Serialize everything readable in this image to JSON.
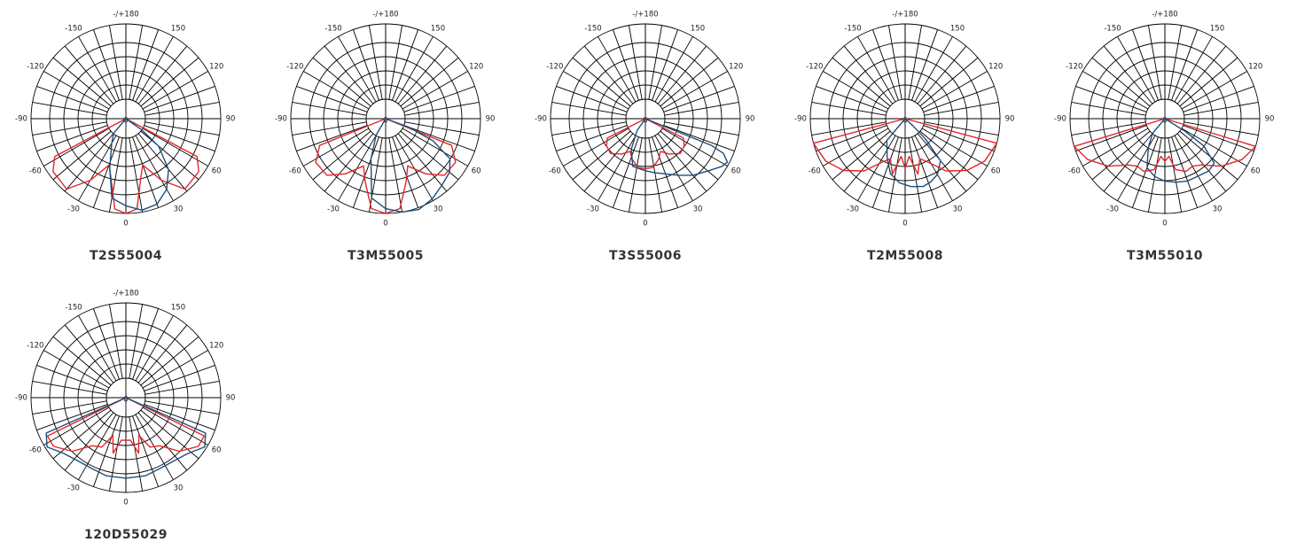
{
  "colors": {
    "grid": "#000000",
    "series_c0": "#e3262b",
    "series_c90": "#1b4f7d",
    "caption": "#333333"
  },
  "chart_data": [
    {
      "type": "polar",
      "title": "T2S55004",
      "grid": true,
      "rlim": [
        0,
        1
      ],
      "angle_ticks": [
        "0",
        "30",
        "60",
        "90",
        "120",
        "150",
        "-/+180",
        "-150",
        "-120",
        "-90",
        "-60",
        "-30",
        "0"
      ],
      "series": [
        {
          "color": "#e3262b",
          "points": [
            [
              -62,
              0.85
            ],
            [
              -54,
              0.95
            ],
            [
              -40,
              0.97
            ],
            [
              -30,
              0.75
            ],
            [
              -20,
              0.52
            ],
            [
              -15,
              0.62
            ],
            [
              -7,
              0.96
            ],
            [
              0,
              1.0
            ],
            [
              7,
              0.96
            ],
            [
              15,
              0.62
            ],
            [
              20,
              0.52
            ],
            [
              30,
              0.75
            ],
            [
              40,
              0.97
            ],
            [
              54,
              0.95
            ],
            [
              62,
              0.85
            ]
          ]
        },
        {
          "color": "#1b4f7d",
          "points": [
            [
              -40,
              0.2
            ],
            [
              -30,
              0.3
            ],
            [
              -18,
              0.55
            ],
            [
              -10,
              0.85
            ],
            [
              0,
              0.92
            ],
            [
              10,
              0.98
            ],
            [
              20,
              0.96
            ],
            [
              30,
              0.86
            ],
            [
              40,
              0.7
            ],
            [
              50,
              0.45
            ],
            [
              55,
              0.2
            ]
          ]
        }
      ]
    },
    {
      "type": "polar",
      "title": "T3M55005",
      "grid": true,
      "rlim": [
        0,
        1
      ],
      "angle_ticks": [
        "0",
        "30",
        "60",
        "90",
        "120",
        "150",
        "-/+180",
        "-150",
        "-120",
        "-90",
        "-60",
        "-30",
        "0"
      ],
      "series": [
        {
          "color": "#e3262b",
          "points": [
            [
              -68,
              0.75
            ],
            [
              -58,
              0.87
            ],
            [
              -46,
              0.86
            ],
            [
              -36,
              0.72
            ],
            [
              -25,
              0.55
            ],
            [
              -18,
              0.7
            ],
            [
              -9,
              0.96
            ],
            [
              0,
              1.0
            ],
            [
              9,
              0.96
            ],
            [
              18,
              0.7
            ],
            [
              25,
              0.55
            ],
            [
              36,
              0.72
            ],
            [
              46,
              0.86
            ],
            [
              58,
              0.87
            ],
            [
              68,
              0.75
            ]
          ]
        },
        {
          "color": "#1b4f7d",
          "points": [
            [
              -30,
              0.2
            ],
            [
              -20,
              0.45
            ],
            [
              -10,
              0.85
            ],
            [
              0,
              0.95
            ],
            [
              10,
              1.0
            ],
            [
              20,
              1.02
            ],
            [
              30,
              0.98
            ],
            [
              40,
              0.92
            ],
            [
              50,
              0.88
            ],
            [
              58,
              0.8
            ],
            [
              65,
              0.55
            ],
            [
              70,
              0.25
            ]
          ]
        }
      ]
    },
    {
      "type": "polar",
      "title": "T3S55006",
      "grid": true,
      "rlim": [
        0,
        1
      ],
      "angle_ticks": [
        "0",
        "30",
        "60",
        "90",
        "120",
        "150",
        "-/+180",
        "-150",
        "-120",
        "-90",
        "-60",
        "-30",
        "0"
      ],
      "series": [
        {
          "color": "#e3262b",
          "points": [
            [
              -63,
              0.45
            ],
            [
              -55,
              0.5
            ],
            [
              -45,
              0.52
            ],
            [
              -34,
              0.45
            ],
            [
              -25,
              0.38
            ],
            [
              -18,
              0.45
            ],
            [
              -9,
              0.52
            ],
            [
              0,
              0.53
            ],
            [
              9,
              0.52
            ],
            [
              18,
              0.45
            ],
            [
              25,
              0.38
            ],
            [
              34,
              0.45
            ],
            [
              45,
              0.52
            ],
            [
              55,
              0.5
            ],
            [
              63,
              0.45
            ]
          ]
        },
        {
          "color": "#1b4f7d",
          "points": [
            [
              -35,
              0.15
            ],
            [
              -25,
              0.35
            ],
            [
              -15,
              0.52
            ],
            [
              0,
              0.55
            ],
            [
              10,
              0.58
            ],
            [
              20,
              0.62
            ],
            [
              30,
              0.69
            ],
            [
              40,
              0.78
            ],
            [
              50,
              0.86
            ],
            [
              58,
              0.95
            ],
            [
              62,
              0.98
            ],
            [
              66,
              0.9
            ],
            [
              68,
              0.75
            ]
          ]
        }
      ]
    },
    {
      "type": "polar",
      "title": "T2M55008",
      "grid": true,
      "rlim": [
        0,
        1
      ],
      "angle_ticks": [
        "0",
        "30",
        "60",
        "90",
        "120",
        "150",
        "-/+180",
        "-150",
        "-120",
        "-90",
        "-60",
        "-30",
        "0"
      ],
      "series": [
        {
          "color": "#e3262b",
          "points": [
            [
              -75,
              1.0
            ],
            [
              -62,
              0.95
            ],
            [
              -50,
              0.85
            ],
            [
              -38,
              0.7
            ],
            [
              -28,
              0.52
            ],
            [
              -20,
              0.45
            ],
            [
              -13,
              0.6
            ],
            [
              -6,
              0.4
            ],
            [
              0,
              0.52
            ],
            [
              6,
              0.4
            ],
            [
              13,
              0.6
            ],
            [
              20,
              0.45
            ],
            [
              28,
              0.52
            ],
            [
              38,
              0.7
            ],
            [
              50,
              0.85
            ],
            [
              62,
              0.95
            ],
            [
              75,
              1.0
            ]
          ]
        },
        {
          "color": "#1b4f7d",
          "points": [
            [
              -40,
              0.3
            ],
            [
              -25,
              0.45
            ],
            [
              -15,
              0.6
            ],
            [
              -5,
              0.68
            ],
            [
              5,
              0.72
            ],
            [
              15,
              0.74
            ],
            [
              22,
              0.72
            ],
            [
              30,
              0.68
            ],
            [
              40,
              0.58
            ],
            [
              45,
              0.3
            ],
            [
              48,
              0.1
            ]
          ]
        }
      ]
    },
    {
      "type": "polar",
      "title": "T3M55010",
      "grid": true,
      "rlim": [
        0,
        1
      ],
      "angle_ticks": [
        "0",
        "30",
        "60",
        "90",
        "120",
        "150",
        "-/+180",
        "-150",
        "-120",
        "-90",
        "-60",
        "-30",
        "0"
      ],
      "series": [
        {
          "color": "#e3262b",
          "points": [
            [
              -73,
              1.0
            ],
            [
              -62,
              0.92
            ],
            [
              -50,
              0.78
            ],
            [
              -38,
              0.62
            ],
            [
              -30,
              0.58
            ],
            [
              -22,
              0.6
            ],
            [
              -12,
              0.55
            ],
            [
              -6,
              0.4
            ],
            [
              0,
              0.45
            ],
            [
              6,
              0.4
            ],
            [
              12,
              0.55
            ],
            [
              22,
              0.6
            ],
            [
              30,
              0.58
            ],
            [
              38,
              0.62
            ],
            [
              50,
              0.78
            ],
            [
              62,
              0.92
            ],
            [
              73,
              1.0
            ]
          ]
        },
        {
          "color": "#1b4f7d",
          "points": [
            [
              -40,
              0.2
            ],
            [
              -30,
              0.35
            ],
            [
              -20,
              0.55
            ],
            [
              -10,
              0.62
            ],
            [
              0,
              0.66
            ],
            [
              10,
              0.68
            ],
            [
              20,
              0.7
            ],
            [
              30,
              0.7
            ],
            [
              40,
              0.72
            ],
            [
              48,
              0.7
            ],
            [
              55,
              0.5
            ],
            [
              58,
              0.25
            ]
          ]
        }
      ]
    },
    {
      "type": "polar",
      "title": "120D55029",
      "grid": true,
      "rlim": [
        0,
        1
      ],
      "angle_ticks": [
        "0",
        "30",
        "60",
        "90",
        "120",
        "150",
        "-/+180",
        "-150",
        "-120",
        "-90",
        "-60",
        "-30",
        "0"
      ],
      "series": [
        {
          "color": "#e3262b",
          "points": [
            [
              -64,
              0.92
            ],
            [
              -56,
              0.92
            ],
            [
              -45,
              0.8
            ],
            [
              -35,
              0.62
            ],
            [
              -26,
              0.58
            ],
            [
              -19,
              0.42
            ],
            [
              -13,
              0.6
            ],
            [
              -6,
              0.45
            ],
            [
              0,
              0.45
            ],
            [
              6,
              0.45
            ],
            [
              13,
              0.6
            ],
            [
              19,
              0.42
            ],
            [
              26,
              0.58
            ],
            [
              35,
              0.62
            ],
            [
              45,
              0.8
            ],
            [
              56,
              0.92
            ],
            [
              64,
              0.92
            ]
          ]
        },
        {
          "color": "#1b4f7d",
          "points": [
            [
              -66,
              0.92
            ],
            [
              -58,
              0.98
            ],
            [
              -48,
              0.88
            ],
            [
              -38,
              0.84
            ],
            [
              -26,
              0.83
            ],
            [
              -14,
              0.85
            ],
            [
              0,
              0.85
            ],
            [
              14,
              0.85
            ],
            [
              26,
              0.83
            ],
            [
              38,
              0.84
            ],
            [
              48,
              0.88
            ],
            [
              58,
              0.98
            ],
            [
              66,
              0.92
            ]
          ]
        }
      ]
    }
  ]
}
